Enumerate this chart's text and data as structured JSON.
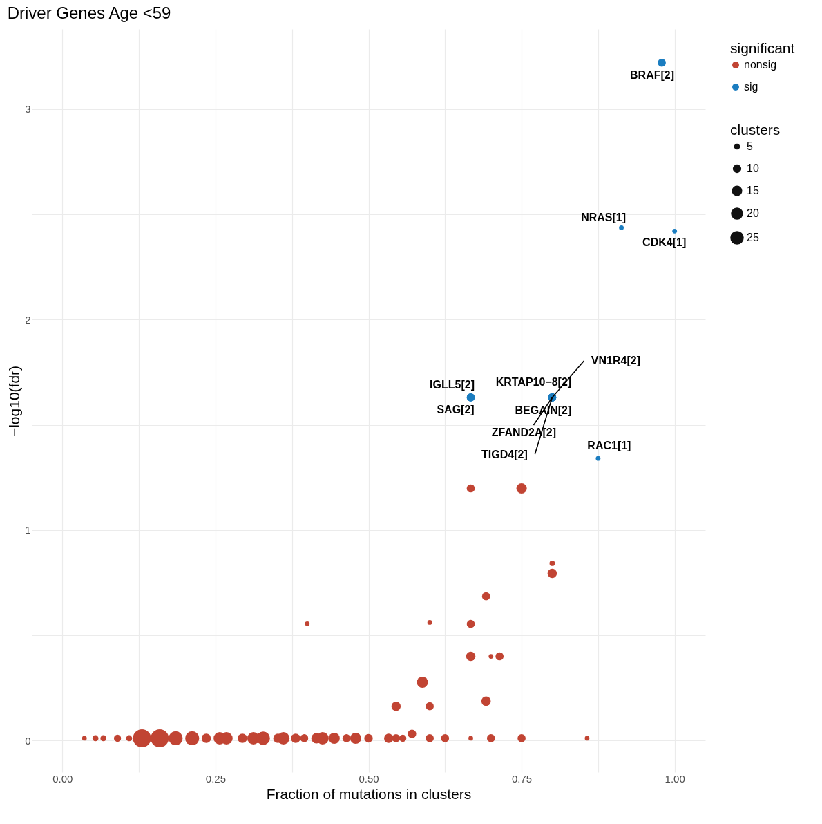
{
  "chart_data": {
    "type": "bubble",
    "title": "Driver Genes Age <59",
    "xlabel": "Fraction of mutations in clusters",
    "ylabel": "−log10(fdr)",
    "legend_title": "significant",
    "series": [
      {
        "name": "nonsig",
        "color": "#c14433",
        "x": [
          0.036,
          0.054,
          0.067,
          0.09,
          0.109,
          0.13,
          0.159,
          0.185,
          0.212,
          0.235,
          0.257,
          0.268,
          0.294,
          0.312,
          0.328,
          0.352,
          0.361,
          0.381,
          0.395,
          0.415,
          0.425,
          0.444,
          0.464,
          0.479,
          0.5,
          0.533,
          0.545,
          0.556,
          0.571,
          0.6,
          0.625,
          0.667,
          0.7,
          0.75,
          0.857,
          0.4,
          0.6,
          0.667,
          0.692,
          0.8,
          0.8,
          0.667,
          0.7,
          0.714,
          0.588,
          0.545,
          0.6,
          0.692,
          0.667,
          0.75
        ],
        "values": [
          0.011,
          0.011,
          0.011,
          0.011,
          0.011,
          0.011,
          0.011,
          0.011,
          0.011,
          0.011,
          0.011,
          0.011,
          0.011,
          0.011,
          0.011,
          0.011,
          0.011,
          0.011,
          0.011,
          0.011,
          0.011,
          0.011,
          0.011,
          0.011,
          0.011,
          0.011,
          0.011,
          0.011,
          0.032,
          0.011,
          0.011,
          0.011,
          0.011,
          0.011,
          0.011,
          0.555,
          0.561,
          0.554,
          0.685,
          0.842,
          0.794,
          0.4,
          0.4,
          0.4,
          0.277,
          0.163,
          0.163,
          0.187,
          1.198,
          1.198
        ],
        "sizes": [
          3,
          5,
          5,
          7,
          5,
          45,
          45,
          27,
          27,
          12,
          21,
          21,
          12,
          21,
          25,
          12,
          21,
          12,
          9,
          15,
          21,
          17,
          9,
          17,
          10,
          12,
          9,
          7,
          10,
          9,
          9,
          3,
          9,
          9,
          3,
          3,
          3,
          9,
          9,
          4,
          12,
          12,
          3,
          9,
          17,
          12,
          9,
          12,
          9,
          15
        ]
      },
      {
        "name": "sig",
        "color": "#1b7dc0",
        "x": [
          0.979,
          0.913,
          1.0,
          0.667,
          0.667,
          0.8,
          0.8,
          0.8,
          0.8,
          0.8,
          0.875
        ],
        "values": [
          3.22,
          2.436,
          2.42,
          1.63,
          1.63,
          1.63,
          1.63,
          1.63,
          1.63,
          1.63,
          1.34
        ],
        "sizes": [
          9,
          3,
          3,
          9,
          9,
          9,
          9,
          9,
          9,
          9,
          3
        ]
      }
    ],
    "size_legend": [
      5,
      10,
      15,
      20,
      25
    ],
    "annotations": [
      {
        "text": "BRAF[2]",
        "x": 0.979,
        "y": 3.22
      },
      {
        "text": "NRAS[1]",
        "x": 0.913,
        "y": 2.436
      },
      {
        "text": "CDK4[1]",
        "x": 1.0,
        "y": 2.42
      },
      {
        "text": "IGLL5[2]",
        "x": 0.667,
        "y": 1.63
      },
      {
        "text": "SAG[2]",
        "x": 0.667,
        "y": 1.63
      },
      {
        "text": "KRTAP10−8[2]",
        "x": 0.8,
        "y": 1.63
      },
      {
        "text": "VN1R4[2]",
        "x": 0.8,
        "y": 1.63
      },
      {
        "text": "BEGAIN[2]",
        "x": 0.8,
        "y": 1.63
      },
      {
        "text": "ZFAND2A[2]",
        "x": 0.8,
        "y": 1.63
      },
      {
        "text": "TIGD4[2]",
        "x": 0.8,
        "y": 1.63
      },
      {
        "text": "RAC1[1]",
        "x": 0.875,
        "y": 1.34
      },
      "clusters"
    ],
    "xlim": [
      -0.05,
      1.05
    ],
    "ylim": [
      -0.15,
      3.38
    ],
    "xticks": [
      {
        "value": 0,
        "label": "0.00"
      },
      {
        "value": 0.125,
        "label": null
      },
      {
        "value": 0.25,
        "label": "0.25"
      },
      {
        "value": 0.375,
        "label": null
      },
      {
        "value": 0.5,
        "label": "0.50"
      },
      {
        "value": 0.625,
        "label": null
      },
      {
        "value": 0.75,
        "label": "0.75"
      },
      {
        "value": 0.875,
        "label": null
      },
      {
        "value": 1,
        "label": "1.00"
      }
    ],
    "yticks": [
      0,
      {
        "value": 0.5,
        "label": null
      },
      1,
      {
        "value": 1.5,
        "label": null
      },
      2,
      {
        "value": 2.5,
        "label": null
      },
      3
    ],
    "grid": true,
    "legend": "right",
    "marker": "circle"
  }
}
